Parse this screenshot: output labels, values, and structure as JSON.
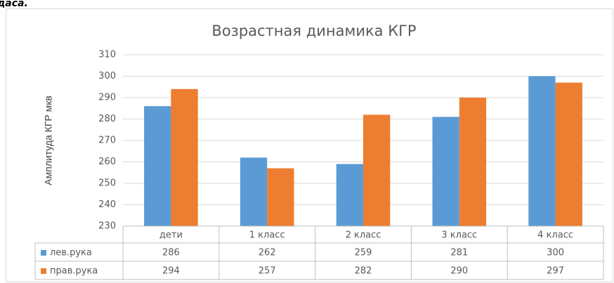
{
  "caption_fragment": "даса.",
  "chart_data": {
    "type": "bar",
    "title": "Возрастная динамика КГР",
    "y_label": "Амплитуда КГР мкв",
    "categories": [
      "дети",
      "1 класс",
      "2 класс",
      "3 класс",
      "4 класс"
    ],
    "series": [
      {
        "name": "лев.рука",
        "color": "#5b9bd5",
        "values": [
          286,
          262,
          259,
          281,
          300
        ]
      },
      {
        "name": "прав.рука",
        "color": "#ed7d31",
        "values": [
          294,
          257,
          282,
          290,
          297
        ]
      }
    ],
    "ylim": [
      230,
      310
    ],
    "yticks": [
      230,
      240,
      250,
      260,
      270,
      280,
      290,
      300,
      310
    ],
    "grid": true,
    "data_table": true
  }
}
